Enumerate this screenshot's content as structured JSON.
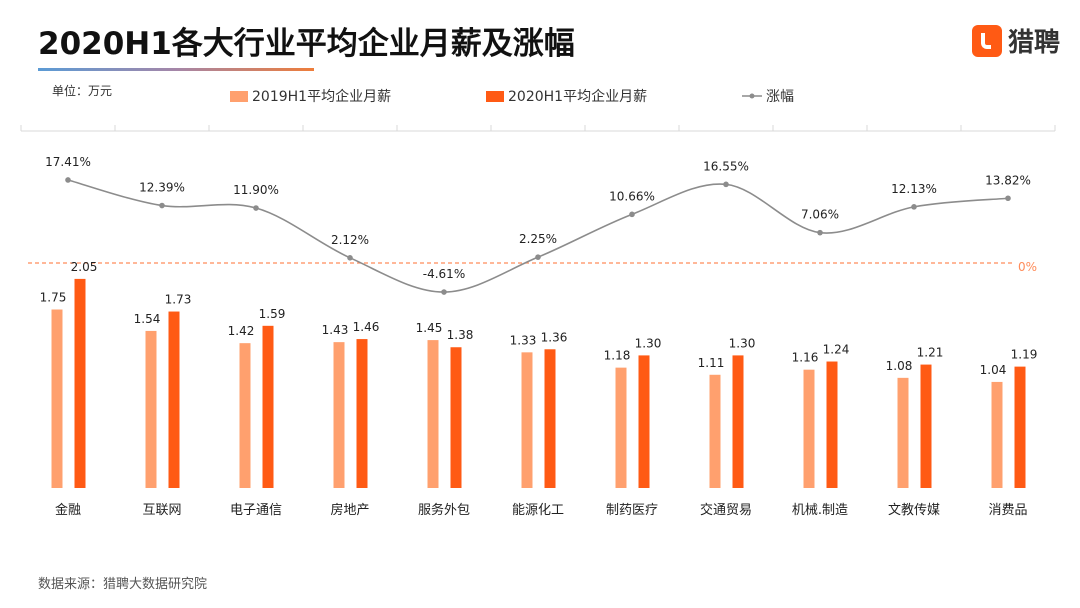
{
  "title": "2020H1各大行业平均企业月薪及涨幅",
  "logo": {
    "text": "猎聘",
    "color": "#ff5a14"
  },
  "unit": "单位：万元",
  "source": "数据来源：猎聘大数据研究院",
  "chart_data": {
    "type": "bar+line",
    "categories": [
      "金融",
      "互联网",
      "电子通信",
      "房地产",
      "服务外包",
      "能源化工",
      "制药医疗",
      "交通贸易",
      "机械.制造",
      "文教传媒",
      "消费品"
    ],
    "series": [
      {
        "name": "2019H1平均企业月薪",
        "type": "bar",
        "color": "#ffa06e",
        "values": [
          1.75,
          1.54,
          1.42,
          1.43,
          1.45,
          1.33,
          1.18,
          1.11,
          1.16,
          1.08,
          1.04
        ]
      },
      {
        "name": "2020H1平均企业月薪",
        "type": "bar",
        "color": "#ff5a14",
        "values": [
          2.05,
          1.73,
          1.59,
          1.46,
          1.38,
          1.36,
          1.3,
          1.3,
          1.24,
          1.21,
          1.19
        ]
      },
      {
        "name": "涨幅",
        "type": "line",
        "color": "#8c8c8c",
        "values": [
          17.41,
          12.39,
          11.9,
          2.12,
          -4.61,
          2.25,
          10.66,
          16.55,
          7.06,
          12.13,
          13.82
        ],
        "labels": [
          "17.41%",
          "12.39%",
          "11.90%",
          "2.12%",
          "-4.61%",
          "2.25%",
          "10.66%",
          "16.55%",
          "7.06%",
          "12.13%",
          "13.82%"
        ]
      }
    ],
    "reference_line": {
      "value": 0,
      "label": "0%",
      "color": "#ff8c5a",
      "style": "dashed"
    },
    "legend_position": "top",
    "grid": false
  }
}
